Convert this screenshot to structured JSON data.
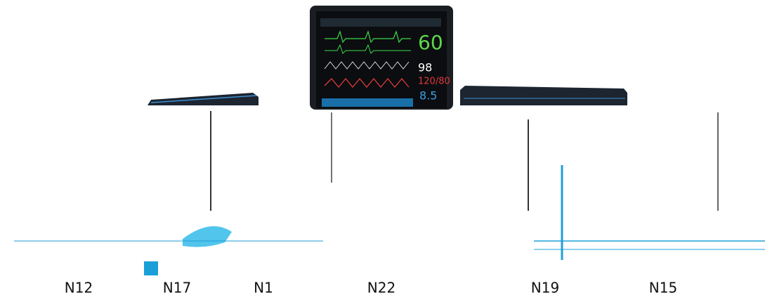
{
  "labels": [
    "N12",
    "N17",
    "N1",
    "N22",
    "N19",
    "N15"
  ],
  "screen_readings": {
    "heart_rate": "60",
    "spo2": "98",
    "nibp": "120/80",
    "etco2": "8.5"
  }
}
